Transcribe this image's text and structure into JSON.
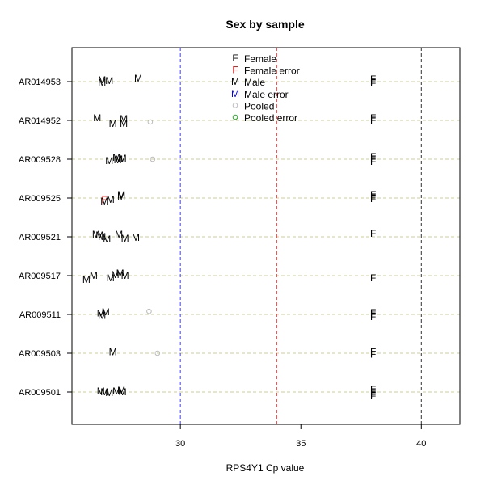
{
  "chart_data": {
    "type": "scatter",
    "title": "Sex by sample",
    "xlabel": "RPS4Y1 Cp value",
    "ylabel": "",
    "xlim": [
      25.5,
      41.6
    ],
    "x_ticks": [
      30,
      35,
      40
    ],
    "samples": [
      "AR009501",
      "AR009503",
      "AR009511",
      "AR009517",
      "AR009521",
      "AR009525",
      "AR009528",
      "AR014952",
      "AR014953"
    ],
    "grid": "horizontal dashed lines at each sample",
    "reference_lines": [
      {
        "x": 30,
        "color": "#4040ff"
      },
      {
        "x": 34,
        "color": "#ff4040"
      },
      {
        "x": 40,
        "color": "#333333"
      }
    ],
    "legend": {
      "position": "top-center",
      "entries": [
        {
          "symbol": "F",
          "label": "Female",
          "color": "#000000"
        },
        {
          "symbol": "F",
          "label": "Female error",
          "color": "#dd0000"
        },
        {
          "symbol": "M",
          "label": "Male",
          "color": "#000000"
        },
        {
          "symbol": "M",
          "label": "Male error",
          "color": "#0000cc"
        },
        {
          "symbol": "o",
          "label": "Pooled",
          "color": "#bbbbbb"
        },
        {
          "symbol": "o",
          "label": "Pooled error",
          "color": "#22aa22"
        }
      ]
    },
    "series": [
      {
        "name": "Female",
        "symbol": "F",
        "color": "#000000",
        "points": [
          {
            "sample": "AR009501",
            "x": 38.0,
            "dy": 0.06
          },
          {
            "sample": "AR009501",
            "x": 38.0,
            "dy": 0.0
          },
          {
            "sample": "AR009501",
            "x": 38.0,
            "dy": -0.06
          },
          {
            "sample": "AR009501",
            "x": 38.0,
            "dy": -0.1
          },
          {
            "sample": "AR009503",
            "x": 38.0,
            "dy": 0.03
          },
          {
            "sample": "AR009503",
            "x": 38.0,
            "dy": -0.03
          },
          {
            "sample": "AR009511",
            "x": 38.0,
            "dy": 0.04
          },
          {
            "sample": "AR009511",
            "x": 38.0,
            "dy": 0.0
          },
          {
            "sample": "AR009511",
            "x": 38.0,
            "dy": -0.06
          },
          {
            "sample": "AR009517",
            "x": 38.0,
            "dy": -0.06
          },
          {
            "sample": "AR009521",
            "x": 38.0,
            "dy": 0.08
          },
          {
            "sample": "AR009525",
            "x": 38.0,
            "dy": 0.08
          },
          {
            "sample": "AR009525",
            "x": 38.0,
            "dy": 0.02
          },
          {
            "sample": "AR009525",
            "x": 38.0,
            "dy": -0.02
          },
          {
            "sample": "AR009528",
            "x": 38.0,
            "dy": 0.06
          },
          {
            "sample": "AR009528",
            "x": 38.0,
            "dy": 0.0
          },
          {
            "sample": "AR009528",
            "x": 38.0,
            "dy": -0.06
          },
          {
            "sample": "AR014952",
            "x": 38.0,
            "dy": 0.06
          },
          {
            "sample": "AR014952",
            "x": 38.0,
            "dy": 0.0
          },
          {
            "sample": "AR014953",
            "x": 38.0,
            "dy": 0.06
          },
          {
            "sample": "AR014953",
            "x": 38.0,
            "dy": 0.0
          },
          {
            "sample": "AR014953",
            "x": 38.0,
            "dy": -0.04
          }
        ]
      },
      {
        "name": "Female error",
        "symbol": "F",
        "color": "#dd0000",
        "points": [
          {
            "sample": "AR009525",
            "x": 26.85,
            "dy": -0.04
          }
        ]
      },
      {
        "name": "Male",
        "symbol": "M",
        "color": "#000000",
        "points": [
          {
            "sample": "AR009501",
            "x": 26.7,
            "dy": 0.02
          },
          {
            "sample": "AR009501",
            "x": 26.85,
            "dy": 0.0
          },
          {
            "sample": "AR009501",
            "x": 27.05,
            "dy": -0.02
          },
          {
            "sample": "AR009501",
            "x": 27.35,
            "dy": 0.02
          },
          {
            "sample": "AR009501",
            "x": 27.55,
            "dy": 0.04
          },
          {
            "sample": "AR009501",
            "x": 27.6,
            "dy": 0.0
          },
          {
            "sample": "AR009503",
            "x": 27.2,
            "dy": 0.03
          },
          {
            "sample": "AR009511",
            "x": 26.75,
            "dy": -0.03
          },
          {
            "sample": "AR009511",
            "x": 26.9,
            "dy": 0.06
          },
          {
            "sample": "AR009511",
            "x": 26.7,
            "dy": 0.03
          },
          {
            "sample": "AR009517",
            "x": 26.1,
            "dy": -0.1
          },
          {
            "sample": "AR009517",
            "x": 26.4,
            "dy": 0.0
          },
          {
            "sample": "AR009517",
            "x": 27.1,
            "dy": -0.06
          },
          {
            "sample": "AR009517",
            "x": 27.3,
            "dy": 0.02
          },
          {
            "sample": "AR009517",
            "x": 27.5,
            "dy": 0.06
          },
          {
            "sample": "AR009517",
            "x": 27.7,
            "dy": 0.0
          },
          {
            "sample": "AR009521",
            "x": 26.5,
            "dy": 0.06
          },
          {
            "sample": "AR009521",
            "x": 26.65,
            "dy": 0.04
          },
          {
            "sample": "AR009521",
            "x": 26.75,
            "dy": 0.0
          },
          {
            "sample": "AR009521",
            "x": 26.95,
            "dy": -0.06
          },
          {
            "sample": "AR009521",
            "x": 27.45,
            "dy": 0.06
          },
          {
            "sample": "AR009521",
            "x": 27.7,
            "dy": -0.04
          },
          {
            "sample": "AR009521",
            "x": 28.15,
            "dy": -0.02
          },
          {
            "sample": "AR009525",
            "x": 26.85,
            "dy": -0.08
          },
          {
            "sample": "AR009525",
            "x": 27.1,
            "dy": -0.04
          },
          {
            "sample": "AR009525",
            "x": 27.55,
            "dy": 0.08
          },
          {
            "sample": "AR009525",
            "x": 27.55,
            "dy": 0.04
          },
          {
            "sample": "AR009528",
            "x": 27.05,
            "dy": -0.04
          },
          {
            "sample": "AR009528",
            "x": 27.35,
            "dy": 0.04
          },
          {
            "sample": "AR009528",
            "x": 27.45,
            "dy": 0.0
          },
          {
            "sample": "AR009528",
            "x": 27.6,
            "dy": 0.02
          },
          {
            "sample": "AR009528",
            "x": 27.4,
            "dy": -0.02
          },
          {
            "sample": "AR014952",
            "x": 26.55,
            "dy": 0.06
          },
          {
            "sample": "AR014952",
            "x": 27.2,
            "dy": -0.08
          },
          {
            "sample": "AR014952",
            "x": 27.65,
            "dy": 0.04
          },
          {
            "sample": "AR014952",
            "x": 27.65,
            "dy": -0.08
          },
          {
            "sample": "AR014953",
            "x": 26.75,
            "dy": 0.04
          },
          {
            "sample": "AR014953",
            "x": 26.75,
            "dy": -0.02
          },
          {
            "sample": "AR014953",
            "x": 27.05,
            "dy": 0.02
          },
          {
            "sample": "AR014953",
            "x": 28.25,
            "dy": 0.08
          }
        ]
      },
      {
        "name": "Pooled",
        "symbol": "o",
        "color": "#bbbbbb",
        "points": [
          {
            "sample": "AR009503",
            "x": 29.05,
            "dy": 0.0
          },
          {
            "sample": "AR009511",
            "x": 28.7,
            "dy": 0.08
          },
          {
            "sample": "AR009528",
            "x": 28.85,
            "dy": 0.0
          },
          {
            "sample": "AR014952",
            "x": 28.75,
            "dy": -0.04
          }
        ]
      }
    ]
  }
}
